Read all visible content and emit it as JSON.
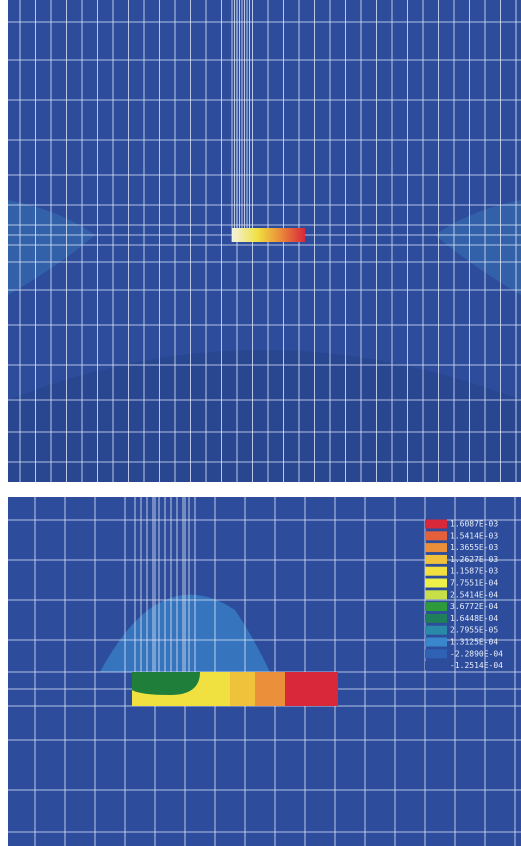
{
  "legend": {
    "entries": [
      {
        "label": "1.6087E-03",
        "color": "#d8283a"
      },
      {
        "label": "1.5414E-03",
        "color": "#e4603a"
      },
      {
        "label": "1.3655E-03",
        "color": "#eb8f3a"
      },
      {
        "label": "1.2627E-03",
        "color": "#f0c23c"
      },
      {
        "label": "1.1587E-03",
        "color": "#f2e040"
      },
      {
        "label": "7.7551E-04",
        "color": "#eef04a"
      },
      {
        "label": "2.5414E-04",
        "color": "#c8e048"
      },
      {
        "label": "3.6772E-04",
        "color": "#2f9a3c"
      },
      {
        "label": "1.6448E-04",
        "color": "#1f7f5a"
      },
      {
        "label": "2.7955E-05",
        "color": "#2a88a8"
      },
      {
        "label": "1.3125E-04",
        "color": "#3a86cc"
      },
      {
        "label": "-2.2890E-04",
        "color": "#2f62b4"
      },
      {
        "label": "-1.2514E-04",
        "color": "#2d4c9c"
      }
    ]
  }
}
